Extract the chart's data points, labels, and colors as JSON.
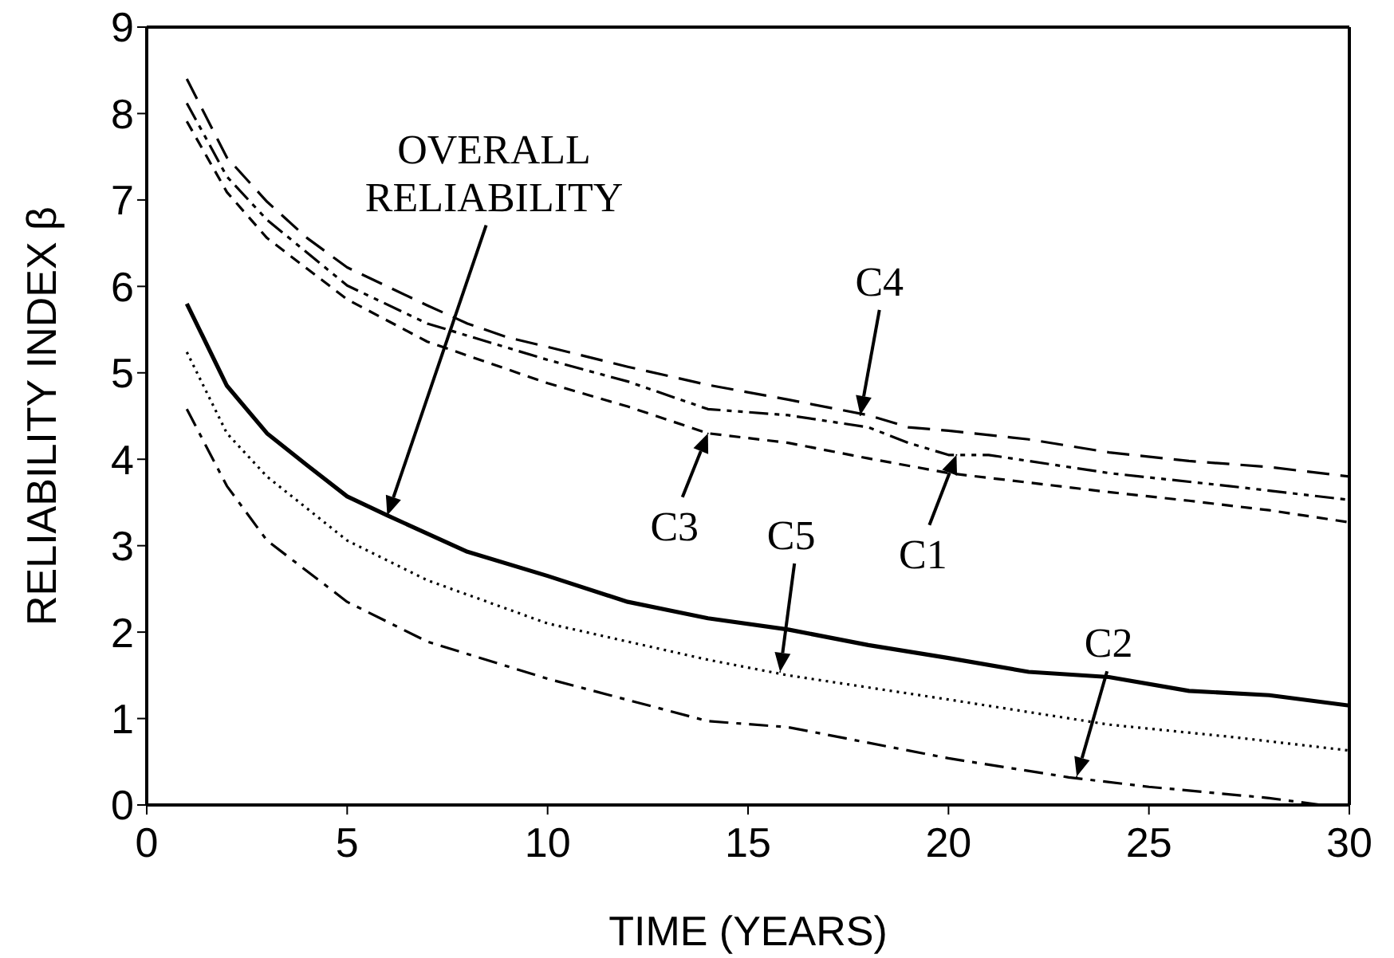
{
  "chart_data": {
    "type": "line",
    "xlabel": "TIME (YEARS)",
    "ylabel": "RELIABILITY INDEX β",
    "xlim": [
      0,
      30
    ],
    "xticks": [
      0,
      5,
      10,
      15,
      20,
      25,
      30
    ],
    "ylim": [
      0,
      9
    ],
    "yticks": [
      0,
      1,
      2,
      3,
      4,
      5,
      6,
      7,
      8,
      9
    ],
    "grid": false,
    "legend": false,
    "marker": "none",
    "series": [
      {
        "color": "#000000",
        "line_style": "dashed",
        "x": [
          1,
          2,
          3,
          4,
          5,
          7,
          8,
          9,
          10,
          12,
          14,
          16,
          18,
          19,
          20,
          22,
          24,
          26,
          28,
          30
        ],
        "values": [
          8.4,
          7.49,
          6.98,
          6.56,
          6.22,
          5.78,
          5.57,
          5.41,
          5.3,
          5.07,
          4.86,
          4.69,
          4.51,
          4.37,
          4.33,
          4.23,
          4.08,
          3.98,
          3.91,
          3.8
        ]
      },
      {
        "color": "#000000",
        "line_style": "dashed",
        "x": [
          1,
          2,
          3,
          5,
          7,
          10,
          12,
          14,
          16,
          18,
          19,
          20,
          21,
          24,
          27,
          30
        ],
        "values": [
          8.12,
          7.27,
          6.77,
          6.01,
          5.57,
          5.15,
          4.9,
          4.58,
          4.51,
          4.37,
          4.19,
          4.05,
          4.05,
          3.84,
          3.69,
          3.53
        ]
      },
      {
        "color": "#000000",
        "line_style": "dashed",
        "x": [
          1,
          2,
          3,
          5,
          7,
          10,
          12,
          14,
          16,
          18,
          20,
          22,
          24,
          26,
          28,
          30
        ],
        "values": [
          7.91,
          7.09,
          6.56,
          5.85,
          5.36,
          4.88,
          4.61,
          4.3,
          4.19,
          4.01,
          3.84,
          3.73,
          3.62,
          3.52,
          3.41,
          3.27
        ]
      },
      {
        "color": "#000000",
        "line_style": "solid",
        "x": [
          1,
          2,
          3,
          4,
          5,
          6,
          8,
          10,
          12,
          14,
          16,
          18,
          20,
          22,
          24,
          26,
          28,
          30
        ],
        "values": [
          5.8,
          4.85,
          4.3,
          3.93,
          3.57,
          3.35,
          2.93,
          2.65,
          2.35,
          2.16,
          2.03,
          1.85,
          1.7,
          1.54,
          1.48,
          1.32,
          1.27,
          1.15
        ]
      },
      {
        "color": "#000000",
        "line_style": "dotted",
        "x": [
          1,
          2,
          3,
          5,
          7,
          10,
          14,
          16,
          20,
          24,
          27,
          30
        ],
        "values": [
          5.24,
          4.3,
          3.8,
          3.06,
          2.6,
          2.1,
          1.68,
          1.5,
          1.22,
          0.93,
          0.79,
          0.63
        ]
      },
      {
        "color": "#000000",
        "line_style": "dashed",
        "x": [
          1,
          2,
          3,
          5,
          7,
          10,
          14,
          16,
          20,
          23,
          25,
          28,
          29.3
        ],
        "values": [
          4.58,
          3.69,
          3.06,
          2.35,
          1.89,
          1.46,
          0.97,
          0.9,
          0.54,
          0.32,
          0.21,
          0.08,
          0
        ]
      }
    ],
    "annotations": [
      "OVERALL\nRELIABILITY",
      {
        "text": "C4",
        "x": 17.8,
        "y": 4.51
      },
      {
        "text": "C3",
        "x": 14,
        "y": 4.3
      },
      {
        "text": "C1",
        "x": 20.2,
        "y": 4.05
      },
      {
        "text": "C5",
        "x": 15.8,
        "y": 1.54
      },
      {
        "text": "C2",
        "x": 23.2,
        "y": 0.33
      }
    ]
  }
}
